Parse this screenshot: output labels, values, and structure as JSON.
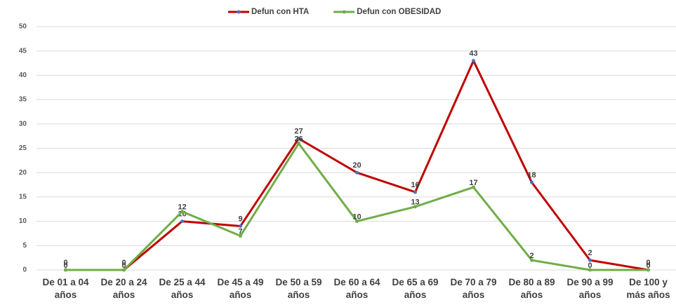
{
  "chart_data": {
    "type": "line",
    "categories": [
      "De 01 a 04 años",
      "De 20 a 24 años",
      "De 25 a 44 años",
      "De 45 a 49 años",
      "De 50 a 59 años",
      "De 60 a 64 años",
      "De 65 a 69 años",
      "De 70 a 79 años",
      "De 80 a 89 años",
      "De 90 a 99 años",
      "De 100 y más años"
    ],
    "series": [
      {
        "name": "Defun con HTA",
        "color": "#c00000",
        "marker_color": "#4472c4",
        "values": [
          0,
          0,
          10,
          9,
          27,
          20,
          16,
          43,
          18,
          2,
          0
        ]
      },
      {
        "name": "Defun con OBESIDAD",
        "color": "#70ad47",
        "marker_color": "#70ad47",
        "values": [
          0,
          0,
          12,
          7,
          26,
          10,
          13,
          17,
          2,
          0,
          0
        ]
      }
    ],
    "ylim": [
      0,
      50
    ],
    "yticks": [
      0,
      5,
      10,
      15,
      20,
      25,
      30,
      35,
      40,
      45,
      50
    ],
    "grid": true,
    "legend": "top"
  }
}
